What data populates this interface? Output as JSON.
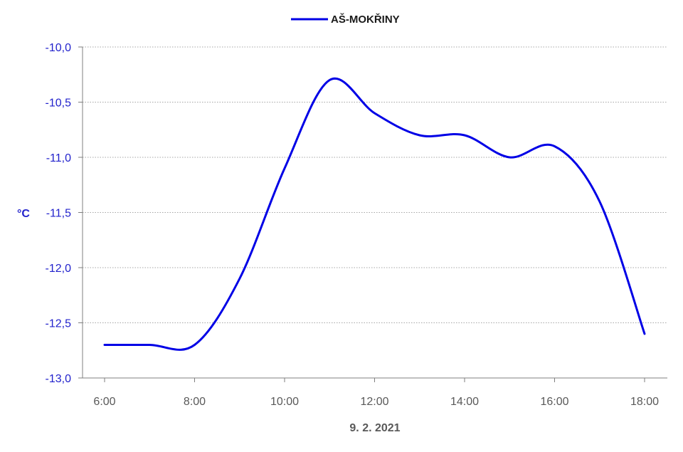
{
  "chart_data": {
    "type": "line",
    "xlabel": "9. 2. 2021",
    "ylabel": "°C",
    "x_ticks": [
      "6:00",
      "8:00",
      "10:00",
      "12:00",
      "14:00",
      "16:00",
      "18:00"
    ],
    "y_ticks": [
      "-10,0",
      "-10,5",
      "-11,0",
      "-11,5",
      "-12,0",
      "-12,5",
      "-13,0"
    ],
    "xlim": [
      6,
      18
    ],
    "ylim": [
      -13.0,
      -10.0
    ],
    "grid": true,
    "legend_position": "top-center",
    "series": [
      {
        "name": "AŠ-MOKŘINY",
        "color": "#0000e6",
        "x": [
          6,
          7,
          8,
          9,
          10,
          11,
          12,
          13,
          14,
          15,
          16,
          17,
          18
        ],
        "y": [
          -12.7,
          -12.7,
          -12.7,
          -12.1,
          -11.1,
          -10.3,
          -10.6,
          -10.8,
          -10.8,
          -11.0,
          -10.9,
          -11.4,
          -12.6
        ]
      }
    ]
  }
}
